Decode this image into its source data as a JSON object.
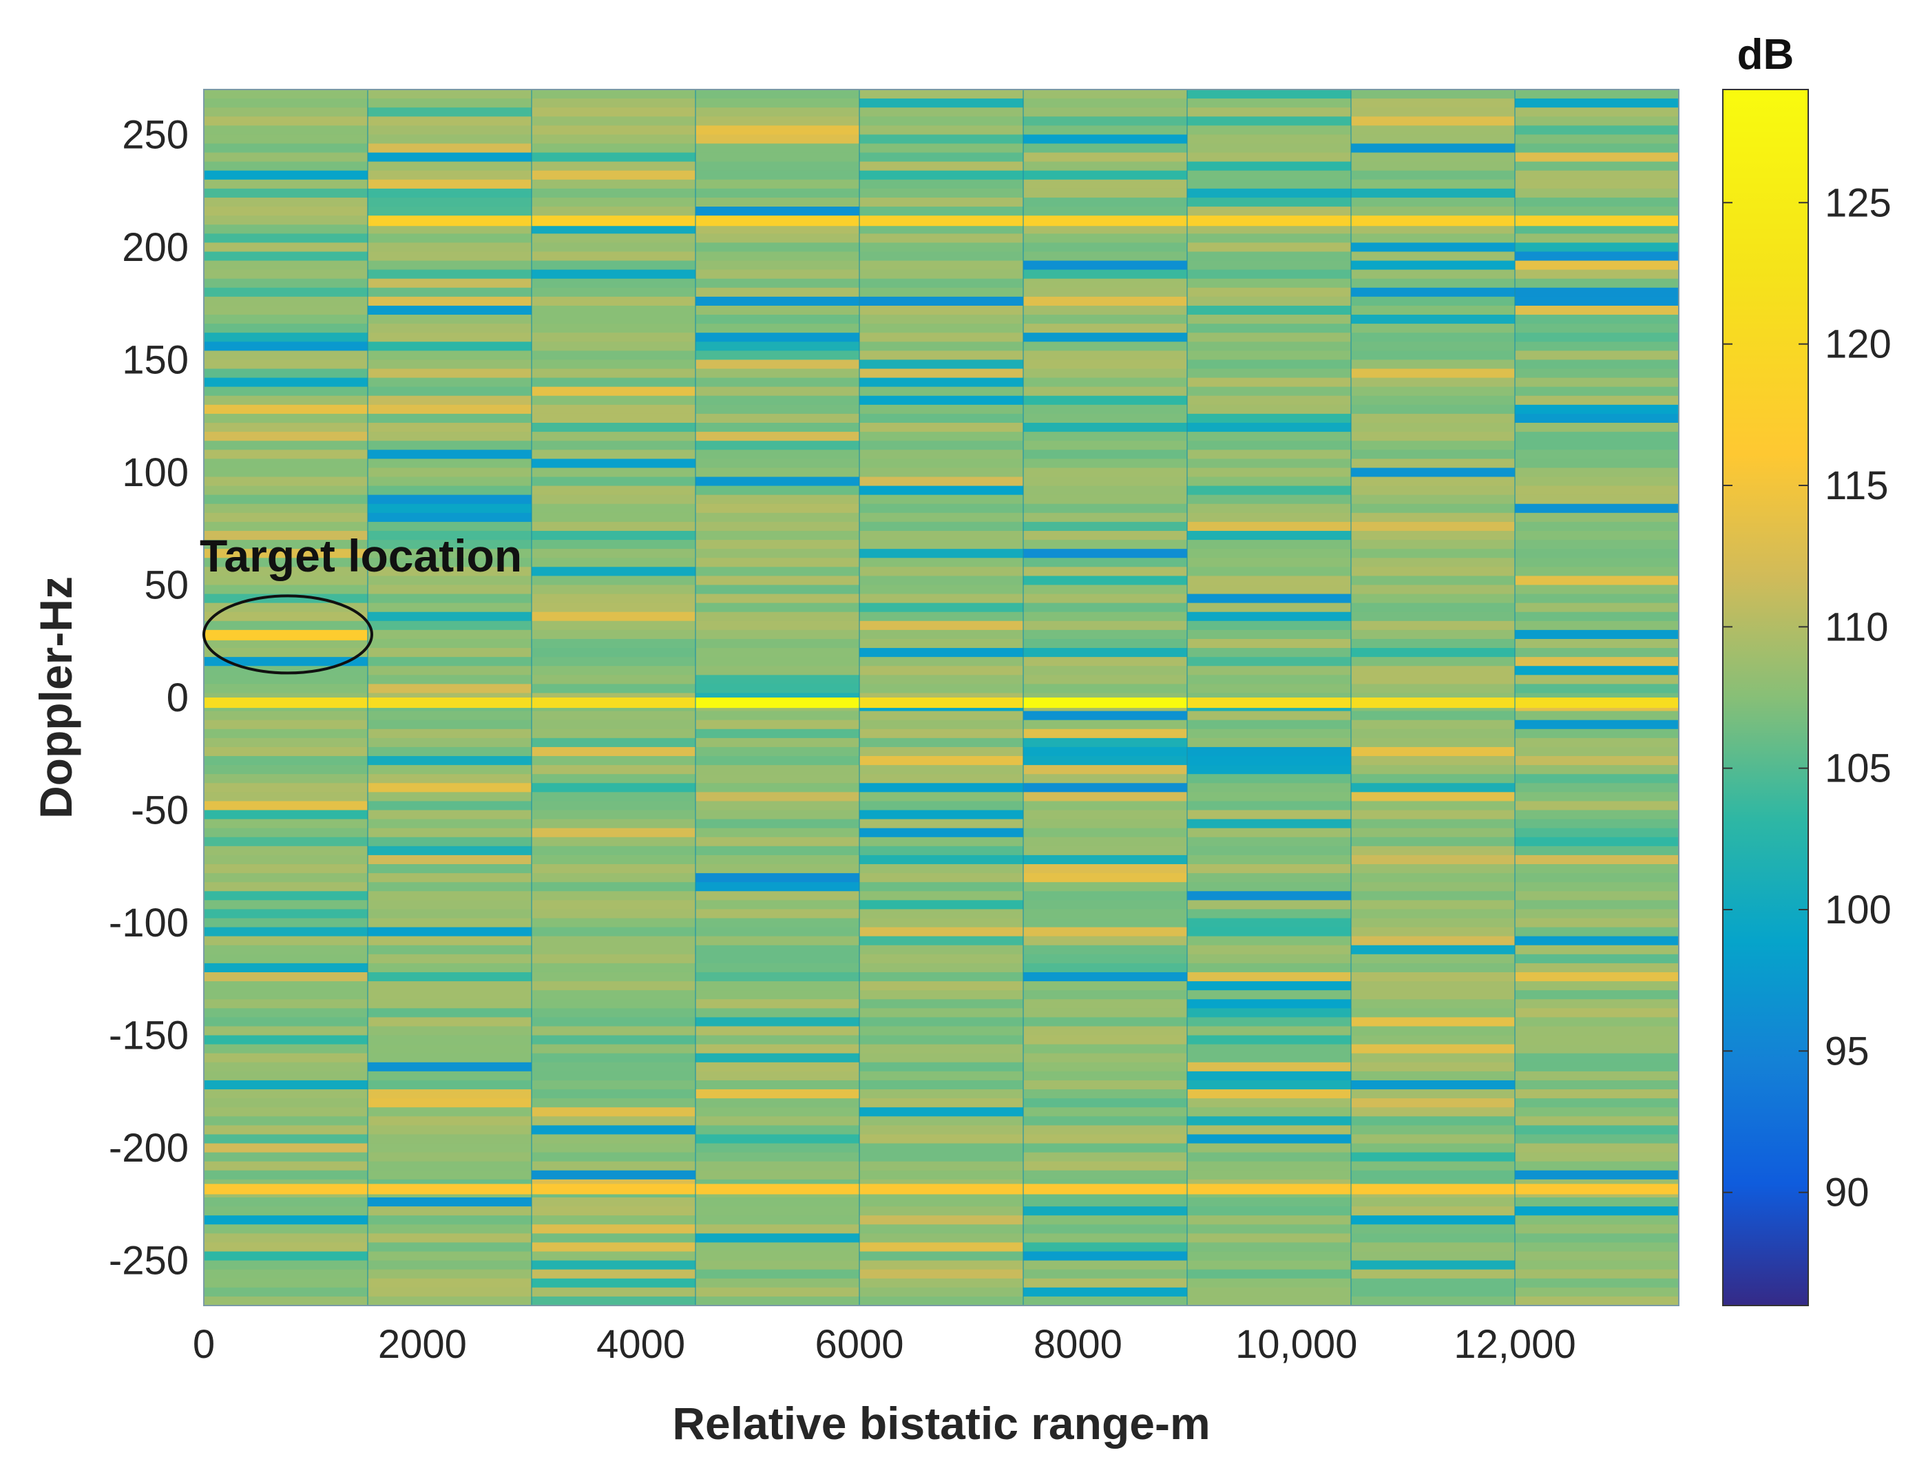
{
  "chart_data": {
    "type": "heatmap",
    "title": "",
    "xlabel": "Relative bistatic range-m",
    "ylabel": "Doppler-Hz",
    "xlim": [
      0,
      13500
    ],
    "ylim": [
      -270,
      270
    ],
    "xticks": [
      0,
      2000,
      4000,
      6000,
      8000,
      10000,
      12000
    ],
    "xtick_labels": [
      "0",
      "2000",
      "4000",
      "6000",
      "8000",
      "10,000",
      "12,000"
    ],
    "yticks": [
      250,
      200,
      150,
      100,
      50,
      0,
      -50,
      -100,
      -150,
      -200,
      -250
    ],
    "ytick_labels": [
      "250",
      "200",
      "150",
      "100",
      "50",
      "0",
      "-50",
      "-100",
      "-150",
      "-200",
      "-250"
    ],
    "range_bins_m": [
      0,
      1500,
      3000,
      4500,
      6000,
      7500,
      9000,
      10500,
      12000,
      13500
    ],
    "doppler_bin_hz": 4,
    "background_level_db": 108,
    "colormap": "parula",
    "colorbar": {
      "label": "dB",
      "range": [
        86,
        129
      ],
      "ticks": [
        90,
        95,
        100,
        105,
        110,
        115,
        120,
        125
      ],
      "tick_labels": [
        "90",
        "95",
        "100",
        "105",
        "110",
        "115",
        "120",
        "125"
      ]
    },
    "features": [
      {
        "name": "zero-doppler clutter",
        "doppler_hz": -2,
        "range_m": [
          0,
          13500
        ],
        "level_db": 121
      },
      {
        "name": "zero-doppler peak",
        "doppler_hz": -2,
        "range_m": [
          4500,
          6000
        ],
        "level_db": 129
      },
      {
        "name": "zero-doppler peak",
        "doppler_hz": -2,
        "range_m": [
          7500,
          9000
        ],
        "level_db": 129
      },
      {
        "name": "positive-doppler line",
        "doppler_hz": 212,
        "range_m": [
          1500,
          13500
        ],
        "level_db": 118
      },
      {
        "name": "negative-doppler line",
        "doppler_hz": -218,
        "range_m": [
          0,
          13500
        ],
        "level_db": 116
      },
      {
        "name": "target",
        "doppler_hz": 28,
        "range_m": [
          0,
          1500
        ],
        "level_db": 117
      }
    ],
    "annotations": [
      {
        "text": "Target location",
        "range_m": 750,
        "doppler_hz": 28,
        "shape": "ellipse"
      }
    ]
  }
}
